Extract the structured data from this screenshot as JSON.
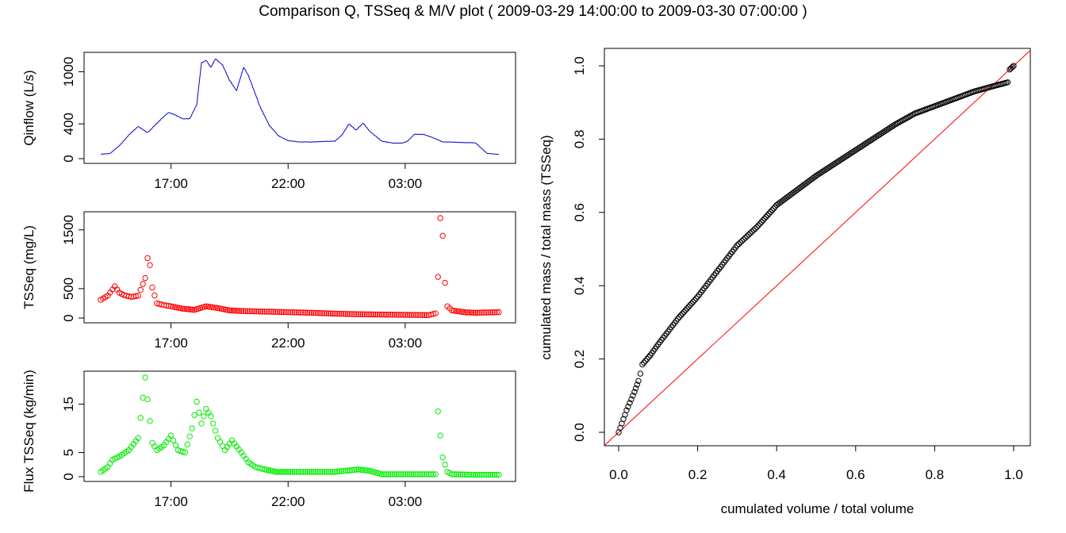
{
  "figure": {
    "title": "Comparison Q, TSSeq & M/V plot  ( 2009-03-29 14:00:00 to 2009-03-30 07:00:00 )"
  },
  "chart_data": [
    {
      "id": "qinflow",
      "type": "line",
      "ylabel": "Qinflow (L/s)",
      "xlabel": "",
      "color": "#0000cc",
      "x_ticks": [
        "17:00",
        "22:00",
        "03:00"
      ],
      "x_tick_hours": [
        3,
        8,
        13
      ],
      "xlim_hours": [
        0,
        17
      ],
      "ylim": [
        0,
        1150
      ],
      "y_ticks": [
        0,
        400,
        1000
      ],
      "grid": false,
      "x_hours": [
        0,
        0.4,
        0.8,
        1.2,
        1.6,
        2.0,
        2.3,
        2.6,
        2.9,
        3.2,
        3.5,
        3.8,
        4.1,
        4.3,
        4.5,
        4.7,
        4.9,
        5.2,
        5.5,
        5.8,
        6.1,
        6.3,
        6.5,
        6.8,
        7.2,
        7.6,
        8.0,
        8.5,
        9.0,
        9.5,
        10.0,
        10.3,
        10.6,
        10.9,
        11.2,
        11.5,
        12.0,
        12.5,
        12.9,
        13.1,
        13.4,
        13.8,
        14.2,
        14.6,
        15.1,
        15.6,
        16.0,
        16.5,
        17.0
      ],
      "values": [
        50,
        60,
        150,
        270,
        370,
        300,
        380,
        460,
        530,
        500,
        460,
        460,
        620,
        1100,
        1130,
        1050,
        1150,
        1080,
        900,
        780,
        1050,
        960,
        820,
        600,
        380,
        260,
        210,
        190,
        190,
        200,
        200,
        270,
        400,
        330,
        410,
        310,
        200,
        180,
        180,
        200,
        280,
        280,
        240,
        190,
        190,
        185,
        180,
        60,
        50
      ]
    },
    {
      "id": "tsseq",
      "type": "scatter",
      "ylabel": "TSSeq (mg/L)",
      "xlabel": "",
      "color": "#ff0000",
      "x_ticks": [
        "17:00",
        "22:00",
        "03:00"
      ],
      "x_tick_hours": [
        3,
        8,
        13
      ],
      "xlim_hours": [
        0,
        17
      ],
      "ylim": [
        0,
        1700
      ],
      "y_ticks": [
        0,
        500,
        1500
      ],
      "grid": false,
      "x_hours": [
        0,
        0.3,
        0.6,
        0.8,
        1.0,
        1.3,
        1.6,
        1.9,
        2.0,
        2.1,
        2.2,
        2.4,
        2.7,
        3.0,
        3.5,
        4.0,
        4.5,
        5.0,
        5.5,
        6.0,
        7.0,
        8.0,
        9.0,
        10.0,
        11.0,
        12.0,
        13.0,
        14.0,
        14.3,
        14.4,
        14.5,
        14.6,
        14.7,
        14.8,
        15.0,
        15.5,
        16.0,
        17.0
      ],
      "values": [
        310,
        380,
        540,
        430,
        390,
        360,
        380,
        680,
        1020,
        900,
        520,
        250,
        220,
        200,
        160,
        140,
        200,
        170,
        130,
        120,
        110,
        100,
        90,
        75,
        65,
        60,
        55,
        50,
        80,
        700,
        1700,
        1400,
        600,
        200,
        130,
        100,
        90,
        100
      ]
    },
    {
      "id": "flux",
      "type": "scatter",
      "ylabel": "Flux TSSeq (kg/min)",
      "xlabel": "",
      "color": "#00ee00",
      "x_ticks": [
        "17:00",
        "22:00",
        "03:00"
      ],
      "x_tick_hours": [
        3,
        8,
        13
      ],
      "xlim_hours": [
        0,
        17
      ],
      "ylim": [
        0,
        20.5
      ],
      "y_ticks": [
        0,
        5,
        15
      ],
      "grid": false,
      "x_hours": [
        0,
        0.3,
        0.5,
        0.8,
        1.2,
        1.6,
        1.9,
        2.0,
        2.2,
        2.4,
        2.7,
        3.0,
        3.3,
        3.6,
        3.9,
        4.1,
        4.3,
        4.5,
        4.7,
        5.0,
        5.3,
        5.6,
        6.0,
        6.3,
        6.6,
        7.0,
        7.5,
        8.0,
        9.0,
        10.0,
        11.0,
        11.5,
        12.0,
        13.0,
        14.0,
        14.3,
        14.4,
        14.5,
        14.6,
        14.8,
        15.0,
        16.0,
        17.0
      ],
      "values": [
        1,
        2,
        3.5,
        4.2,
        5.5,
        8,
        20.5,
        16,
        7,
        5.5,
        6.5,
        8.5,
        5.5,
        5,
        10,
        15.5,
        11,
        14,
        12.5,
        8,
        5.5,
        7.5,
        5,
        3,
        2,
        1.5,
        1,
        1,
        1,
        1,
        1.5,
        1.2,
        0.5,
        0.5,
        0.5,
        0.5,
        13.5,
        8.5,
        4,
        1,
        0.5,
        0.4,
        0.4
      ]
    },
    {
      "id": "mv",
      "type": "scatter",
      "xlabel": "cumulated volume / total volume",
      "ylabel": "cumulated mass / total mass (TSSeq)",
      "xlim": [
        0,
        1
      ],
      "ylim": [
        0,
        1
      ],
      "x_ticks": [
        "0.0",
        "0.2",
        "0.4",
        "0.6",
        "0.8",
        "1.0"
      ],
      "y_ticks": [
        "0.0",
        "0.2",
        "0.4",
        "0.6",
        "0.8",
        "1.0"
      ],
      "grid": false,
      "point_color": "#000000",
      "reference_line": {
        "from": [
          0,
          0
        ],
        "to": [
          1,
          1
        ],
        "color": "#ff0000"
      },
      "x": [
        0,
        0.02,
        0.04,
        0.05,
        0.055,
        0.06,
        0.08,
        0.1,
        0.15,
        0.2,
        0.25,
        0.3,
        0.35,
        0.4,
        0.5,
        0.6,
        0.7,
        0.75,
        0.8,
        0.85,
        0.9,
        0.95,
        0.985,
        0.99,
        1.0
      ],
      "y": [
        0,
        0.06,
        0.11,
        0.14,
        0.16,
        0.185,
        0.21,
        0.24,
        0.31,
        0.37,
        0.44,
        0.51,
        0.56,
        0.62,
        0.7,
        0.77,
        0.84,
        0.87,
        0.89,
        0.91,
        0.93,
        0.945,
        0.955,
        0.99,
        1.0
      ]
    }
  ]
}
